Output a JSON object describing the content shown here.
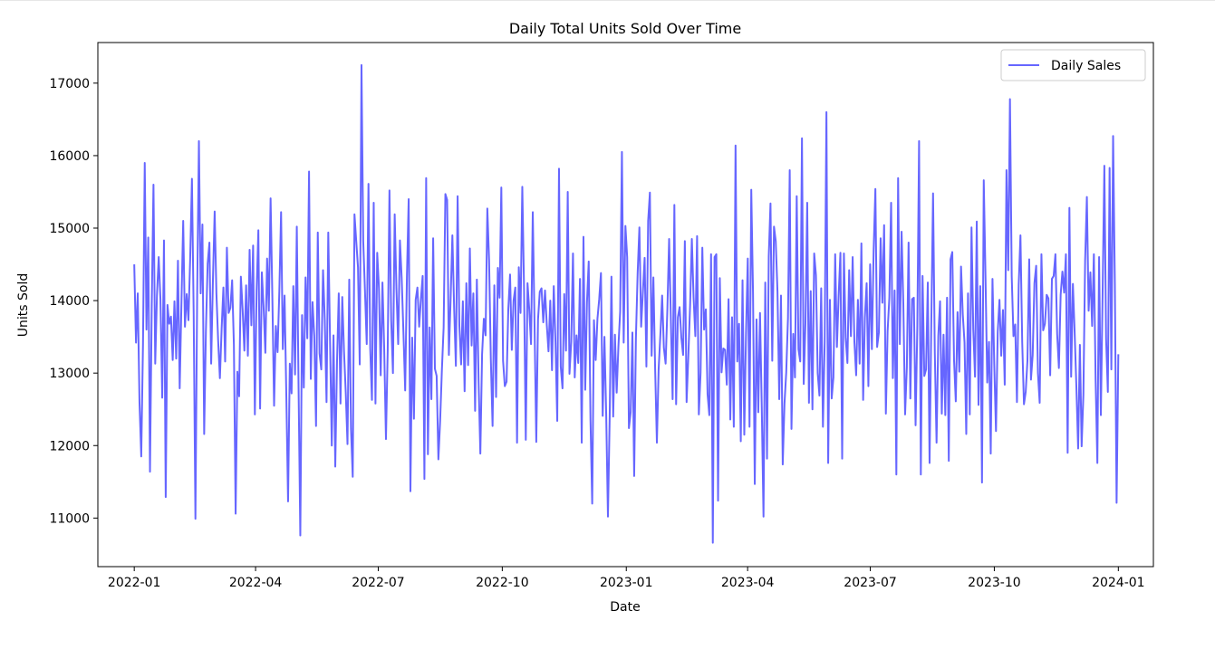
{
  "chart_data": {
    "type": "line",
    "title": "Daily Total Units Sold Over Time",
    "xlabel": "Date",
    "ylabel": "Units Sold",
    "x_start": "2022-01-01",
    "x_end": "2024-01-01",
    "xlim": [
      "2021-12-05",
      "2024-01-27"
    ],
    "ylim": [
      10330,
      17560
    ],
    "x_ticks": [
      "2022-01",
      "2022-04",
      "2022-07",
      "2022-10",
      "2023-01",
      "2023-04",
      "2023-07",
      "2023-10",
      "2024-01"
    ],
    "y_ticks": [
      11000,
      12000,
      13000,
      14000,
      15000,
      16000,
      17000
    ],
    "grid": false,
    "legend_position": "top-right",
    "series": [
      {
        "name": "Daily Sales",
        "color": "#6666ff",
        "values": [
          14500,
          13420,
          14100,
          12600,
          11850,
          13400,
          15900,
          13600,
          14870,
          11640,
          13900,
          15600,
          13130,
          14080,
          14600,
          14010,
          12660,
          14830,
          11290,
          13940,
          13680,
          13780,
          13180,
          13990,
          13200,
          14550,
          12790,
          13970,
          15100,
          13640,
          14090,
          13730,
          14580,
          15680,
          13810,
          10990,
          14100,
          16200,
          14100,
          15050,
          12160,
          13590,
          14510,
          14800,
          13130,
          14270,
          15230,
          14100,
          13450,
          12930,
          13620,
          14180,
          13160,
          14730,
          13830,
          13900,
          14280,
          13390,
          11060,
          13020,
          12680,
          14330,
          13880,
          13310,
          14210,
          13240,
          14700,
          13660,
          14760,
          12430,
          14140,
          14970,
          12510,
          14390,
          13910,
          13280,
          14580,
          13860,
          15410,
          14060,
          12550,
          13650,
          13290,
          14130,
          15220,
          13330,
          14070,
          12700,
          11230,
          13130,
          12720,
          14200,
          12980,
          15020,
          12810,
          10760,
          13800,
          12800,
          14320,
          13480,
          15780,
          12920,
          13980,
          13510,
          12270,
          14940,
          13270,
          13050,
          14420,
          13740,
          12600,
          14940,
          13470,
          12000,
          13520,
          11710,
          13150,
          14100,
          12580,
          14050,
          13300,
          12730,
          12020,
          14290,
          12230,
          11570,
          15190,
          14820,
          14460,
          13120,
          17250,
          14820,
          14130,
          13400,
          15610,
          13340,
          12630,
          15350,
          12580,
          14660,
          14170,
          12970,
          14250,
          13330,
          12090,
          13310,
          15520,
          13730,
          13000,
          15190,
          14160,
          13400,
          14830,
          14310,
          13560,
          12760,
          14340,
          15400,
          11370,
          13490,
          12370,
          14010,
          14180,
          13640,
          14020,
          14340,
          11540,
          15690,
          11880,
          13630,
          12640,
          14860,
          13060,
          12960,
          11810,
          12340,
          13040,
          13630,
          15470,
          15390,
          13250,
          14030,
          14900,
          13900,
          13100,
          15440,
          13660,
          13120,
          13990,
          12750,
          14240,
          13110,
          14720,
          13380,
          14100,
          12480,
          14290,
          12890,
          11890,
          13260,
          13750,
          13520,
          15270,
          14560,
          13190,
          12270,
          14210,
          12670,
          14450,
          14040,
          15560,
          13170,
          12820,
          12880,
          13880,
          14360,
          13320,
          14000,
          14180,
          12040,
          14460,
          13830,
          15570,
          14160,
          12080,
          14240,
          13870,
          13400,
          15220,
          13680,
          12050,
          13740,
          14120,
          14170,
          13700,
          14140,
          13670,
          13300,
          14000,
          13040,
          14200,
          13420,
          12340,
          15820,
          13090,
          12790,
          14090,
          13310,
          15500,
          12990,
          13430,
          14650,
          12940,
          13520,
          13140,
          14300,
          12040,
          14880,
          12770,
          13980,
          14540,
          12370,
          11200,
          13730,
          13180,
          13750,
          14020,
          14380,
          12410,
          13500,
          12430,
          11020,
          12400,
          14330,
          12400,
          13530,
          12730,
          13370,
          13850,
          16050,
          13420,
          15030,
          14600,
          12240,
          12460,
          13560,
          11580,
          13480,
          14380,
          15010,
          13640,
          14120,
          14590,
          13090,
          15100,
          15490,
          13240,
          14320,
          13060,
          12040,
          13050,
          13530,
          14070,
          13350,
          13130,
          13880,
          14850,
          13740,
          12640,
          15320,
          12570,
          13770,
          13910,
          13490,
          13250,
          14820,
          12600,
          13240,
          13930,
          14850,
          14040,
          13510,
          14890,
          12430,
          13010,
          14730,
          13600,
          13880,
          12710,
          12420,
          14640,
          10660,
          14600,
          14640,
          11240,
          14310,
          13010,
          13340,
          13320,
          12840,
          14020,
          12360,
          13770,
          12260,
          16140,
          13160,
          13680,
          12060,
          14280,
          12150,
          13550,
          14580,
          12260,
          15530,
          14110,
          11470,
          13740,
          12460,
          13830,
          12530,
          11020,
          14250,
          11820,
          14610,
          15340,
          13170,
          15020,
          14820,
          14120,
          12640,
          14070,
          11740,
          12580,
          13010,
          13760,
          15800,
          12230,
          13540,
          12940,
          15440,
          13330,
          13160,
          16240,
          12850,
          13690,
          15350,
          12590,
          14130,
          12500,
          14650,
          14350,
          13000,
          12690,
          14170,
          12260,
          13430,
          16600,
          11760,
          14010,
          12650,
          12940,
          14640,
          13360,
          14070,
          14660,
          11820,
          14650,
          13490,
          13140,
          14420,
          13510,
          14600,
          13430,
          12970,
          14010,
          13130,
          14790,
          12630,
          13770,
          14240,
          12820,
          14500,
          13330,
          14690,
          15540,
          13360,
          13560,
          14860,
          13970,
          15040,
          12440,
          13580,
          14040,
          15350,
          12930,
          14140,
          11600,
          15690,
          13400,
          14950,
          13950,
          12430,
          13080,
          14800,
          12650,
          14020,
          14040,
          12280,
          13650,
          16200,
          11600,
          14340,
          12960,
          13050,
          14250,
          11760,
          13690,
          15480,
          13280,
          12040,
          13510,
          13990,
          12440,
          13530,
          12420,
          14040,
          11790,
          14570,
          14670,
          13180,
          12610,
          13840,
          13020,
          14470,
          13810,
          13420,
          12160,
          14100,
          12430,
          15010,
          13610,
          12950,
          15090,
          12560,
          14200,
          11490,
          15660,
          14330,
          12870,
          13430,
          11890,
          14300,
          13130,
          12200,
          13570,
          14010,
          13240,
          13870,
          12840,
          15800,
          14420,
          16780,
          14340,
          13510,
          13670,
          12600,
          14220,
          14900,
          13430,
          12570,
          12740,
          13170,
          14570,
          12910,
          13250,
          14240,
          14480,
          13000,
          12590,
          14640,
          13590,
          13680,
          14080,
          14030,
          12970,
          14300,
          14340,
          14640,
          13540,
          13070,
          14080,
          14400,
          14110,
          14640,
          11900,
          15280,
          12950,
          14230,
          13560,
          12810,
          11960,
          13390,
          11990,
          12700,
          14550,
          15430,
          13860,
          14390,
          13650,
          14640,
          12900,
          11760,
          14600,
          12420,
          14100,
          15860,
          13470,
          12740,
          15830,
          13050,
          16270,
          14240,
          11210,
          13260
        ]
      }
    ]
  }
}
